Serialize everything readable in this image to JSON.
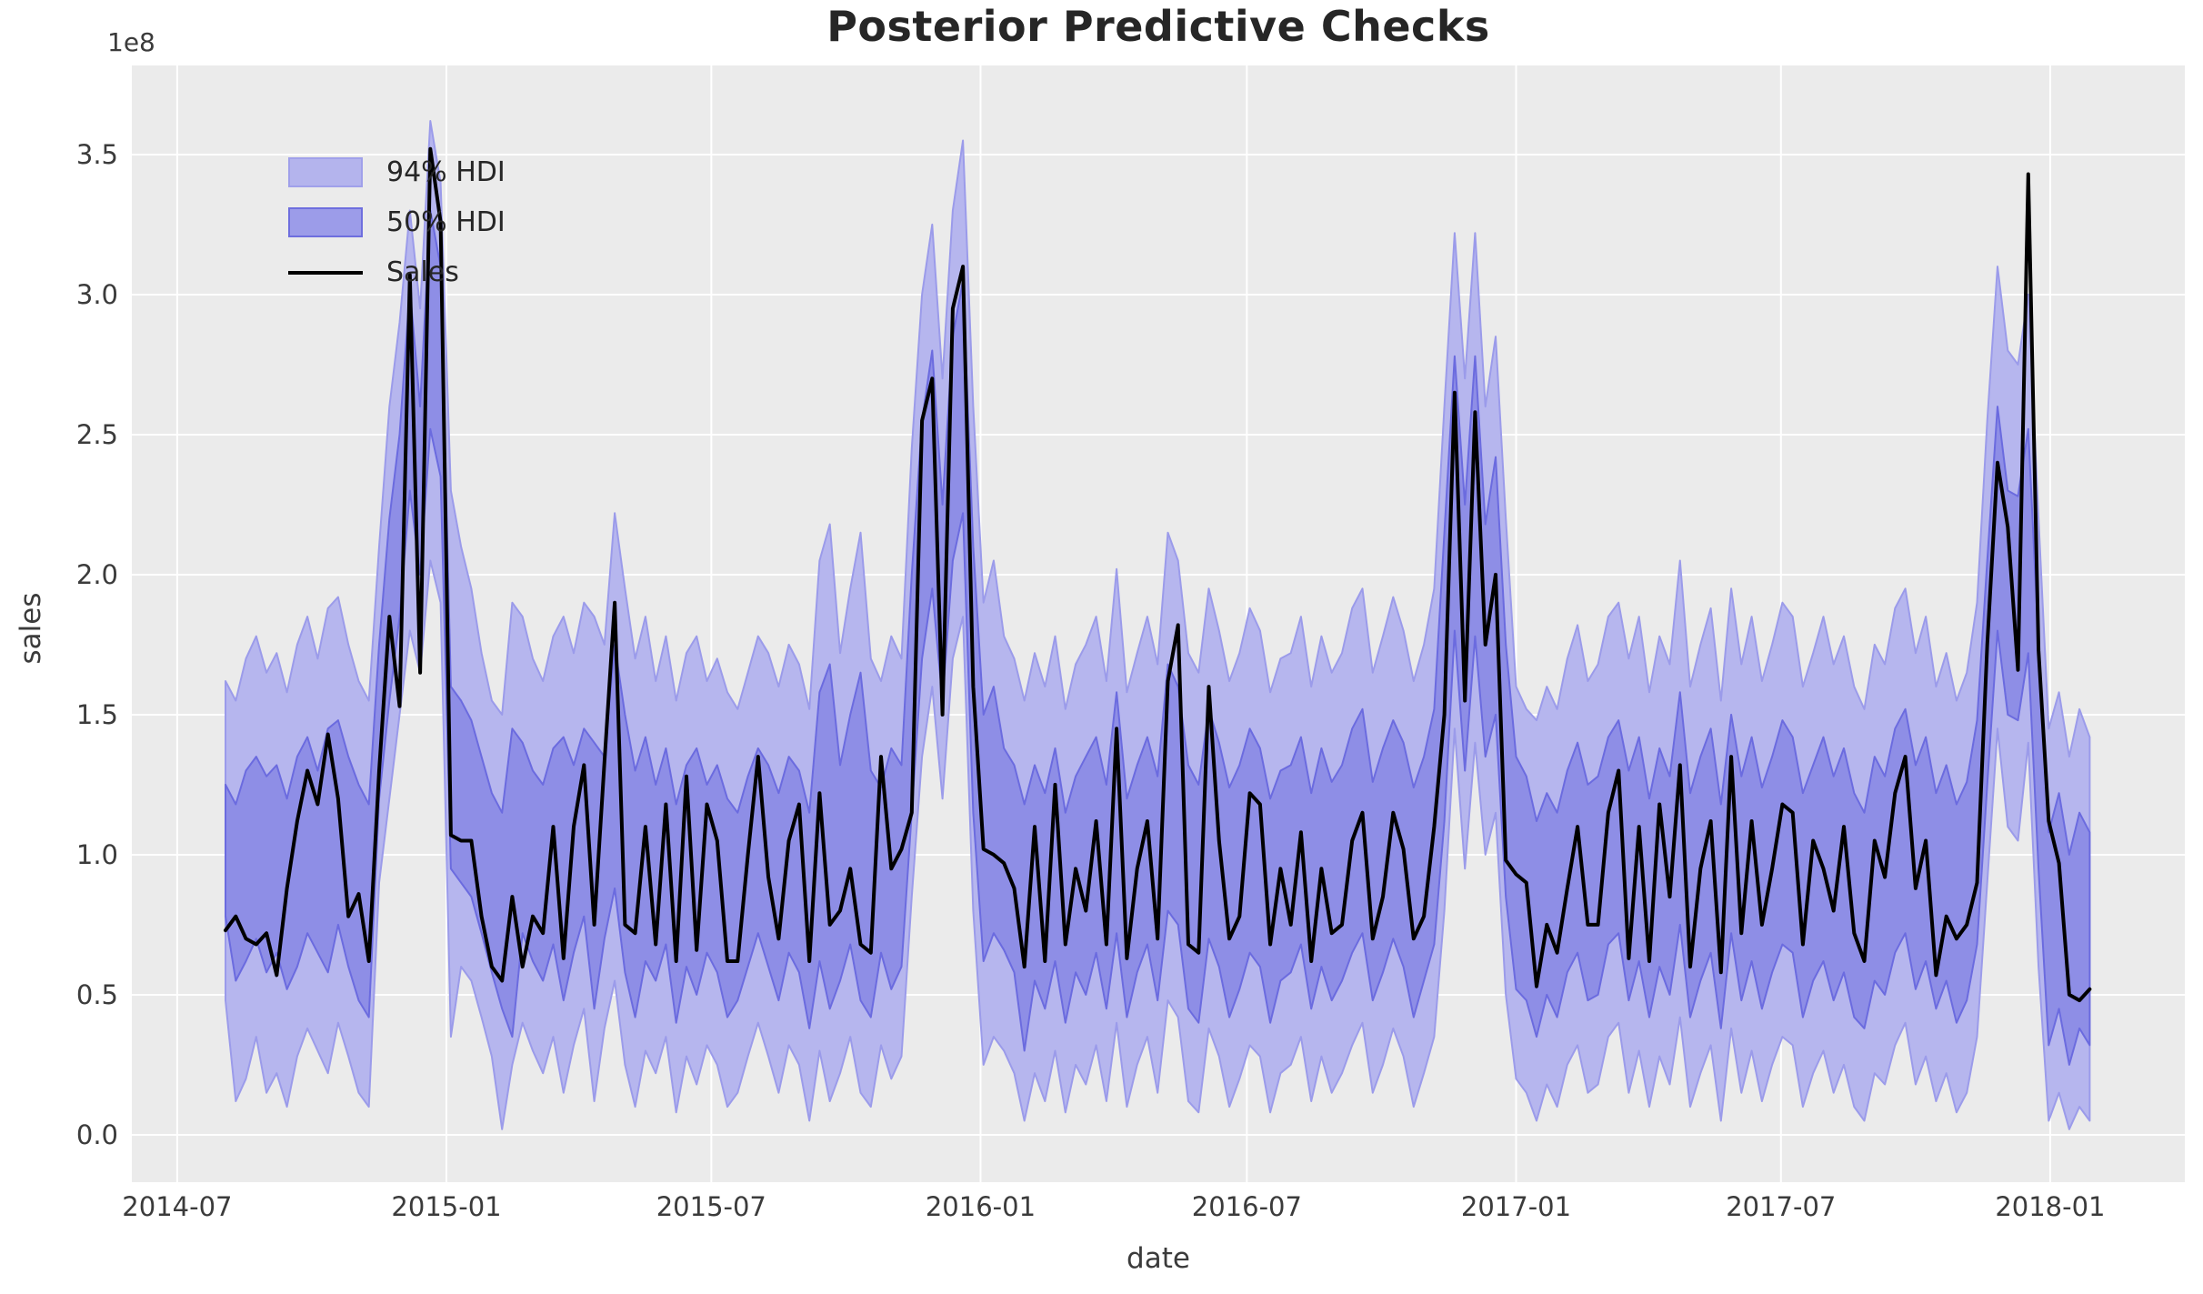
{
  "chart_data": {
    "type": "line",
    "title": "Posterior Predictive Checks",
    "xlabel": "date",
    "ylabel": "sales",
    "y_scale_factor": "1e8",
    "x_start_date": "2014-08-03",
    "x_step_days": 7,
    "n_points": 183,
    "x_tick_labels": [
      "2014-07",
      "2015-01",
      "2015-07",
      "2016-01",
      "2016-07",
      "2017-01",
      "2017-07",
      "2018-01"
    ],
    "x_tick_day_offsets": [
      0,
      184,
      365,
      549,
      731,
      915,
      1096,
      1280
    ],
    "x_axis_range_days": [
      -31,
      1372
    ],
    "y_ticks": [
      0.0,
      0.5,
      1.0,
      1.5,
      2.0,
      2.5,
      3.0,
      3.5
    ],
    "ylim": [
      -0.169,
      3.818
    ],
    "grid": true,
    "legend_position": "upper-left",
    "legend": [
      "94% HDI",
      "50% HDI",
      "Sales"
    ],
    "series": [
      {
        "name": "94% HDI",
        "type": "band",
        "upper": [
          1.62,
          1.55,
          1.7,
          1.78,
          1.65,
          1.72,
          1.58,
          1.75,
          1.85,
          1.7,
          1.88,
          1.92,
          1.75,
          1.62,
          1.55,
          2.1,
          2.6,
          2.9,
          3.3,
          2.95,
          3.62,
          3.4,
          2.3,
          2.1,
          1.95,
          1.72,
          1.55,
          1.5,
          1.9,
          1.85,
          1.7,
          1.62,
          1.78,
          1.85,
          1.72,
          1.9,
          1.85,
          1.75,
          2.22,
          1.95,
          1.7,
          1.85,
          1.62,
          1.78,
          1.55,
          1.72,
          1.78,
          1.62,
          1.7,
          1.58,
          1.52,
          1.65,
          1.78,
          1.72,
          1.6,
          1.75,
          1.68,
          1.52,
          2.05,
          2.18,
          1.72,
          1.95,
          2.15,
          1.7,
          1.62,
          1.78,
          1.7,
          2.45,
          3.0,
          3.25,
          2.7,
          3.3,
          3.55,
          2.6,
          1.9,
          2.05,
          1.78,
          1.7,
          1.55,
          1.72,
          1.6,
          1.78,
          1.52,
          1.68,
          1.75,
          1.85,
          1.62,
          2.02,
          1.58,
          1.72,
          1.85,
          1.68,
          2.15,
          2.05,
          1.72,
          1.65,
          1.95,
          1.8,
          1.62,
          1.72,
          1.88,
          1.8,
          1.58,
          1.7,
          1.72,
          1.85,
          1.6,
          1.78,
          1.65,
          1.72,
          1.88,
          1.95,
          1.65,
          1.78,
          1.92,
          1.8,
          1.62,
          1.75,
          1.95,
          2.6,
          3.22,
          2.7,
          3.22,
          2.6,
          2.85,
          2.2,
          1.6,
          1.52,
          1.48,
          1.6,
          1.52,
          1.7,
          1.82,
          1.62,
          1.68,
          1.85,
          1.9,
          1.7,
          1.85,
          1.58,
          1.78,
          1.68,
          2.05,
          1.6,
          1.75,
          1.88,
          1.55,
          1.95,
          1.68,
          1.85,
          1.62,
          1.75,
          1.9,
          1.85,
          1.6,
          1.72,
          1.85,
          1.68,
          1.78,
          1.6,
          1.52,
          1.75,
          1.68,
          1.88,
          1.95,
          1.72,
          1.85,
          1.6,
          1.72,
          1.55,
          1.65,
          1.9,
          2.55,
          3.1,
          2.8,
          2.75,
          3.0,
          2.2,
          1.45,
          1.58,
          1.35,
          1.52,
          1.42
        ],
        "lower": [
          0.48,
          0.12,
          0.2,
          0.35,
          0.15,
          0.22,
          0.1,
          0.28,
          0.38,
          0.3,
          0.22,
          0.4,
          0.28,
          0.15,
          0.1,
          0.9,
          1.2,
          1.5,
          1.8,
          1.65,
          2.05,
          1.9,
          0.35,
          0.6,
          0.55,
          0.42,
          0.28,
          0.02,
          0.25,
          0.4,
          0.3,
          0.22,
          0.35,
          0.15,
          0.32,
          0.45,
          0.12,
          0.38,
          0.55,
          0.25,
          0.1,
          0.3,
          0.22,
          0.35,
          0.08,
          0.28,
          0.18,
          0.32,
          0.25,
          0.1,
          0.15,
          0.28,
          0.4,
          0.28,
          0.15,
          0.32,
          0.25,
          0.05,
          0.3,
          0.12,
          0.22,
          0.35,
          0.15,
          0.1,
          0.32,
          0.2,
          0.28,
          0.85,
          1.35,
          1.6,
          1.2,
          1.7,
          1.85,
          0.8,
          0.25,
          0.35,
          0.3,
          0.22,
          0.05,
          0.22,
          0.12,
          0.3,
          0.08,
          0.25,
          0.18,
          0.32,
          0.12,
          0.4,
          0.1,
          0.25,
          0.35,
          0.15,
          0.48,
          0.42,
          0.12,
          0.08,
          0.38,
          0.28,
          0.1,
          0.2,
          0.32,
          0.28,
          0.08,
          0.22,
          0.25,
          0.35,
          0.12,
          0.28,
          0.15,
          0.22,
          0.32,
          0.4,
          0.15,
          0.25,
          0.38,
          0.28,
          0.1,
          0.22,
          0.35,
          0.8,
          1.45,
          0.95,
          1.4,
          1.0,
          1.15,
          0.5,
          0.2,
          0.15,
          0.05,
          0.18,
          0.1,
          0.25,
          0.32,
          0.15,
          0.18,
          0.35,
          0.4,
          0.15,
          0.3,
          0.1,
          0.28,
          0.18,
          0.42,
          0.1,
          0.22,
          0.32,
          0.05,
          0.38,
          0.15,
          0.3,
          0.12,
          0.25,
          0.35,
          0.32,
          0.1,
          0.22,
          0.3,
          0.15,
          0.25,
          0.1,
          0.05,
          0.22,
          0.18,
          0.32,
          0.4,
          0.18,
          0.28,
          0.12,
          0.22,
          0.08,
          0.15,
          0.35,
          0.9,
          1.45,
          1.1,
          1.05,
          1.4,
          0.6,
          0.05,
          0.15,
          0.02,
          0.1,
          0.05
        ]
      },
      {
        "name": "50% HDI",
        "type": "band",
        "upper": [
          1.25,
          1.18,
          1.3,
          1.35,
          1.28,
          1.32,
          1.2,
          1.35,
          1.42,
          1.3,
          1.45,
          1.48,
          1.35,
          1.25,
          1.18,
          1.75,
          2.2,
          2.5,
          3.02,
          2.6,
          3.3,
          3.1,
          1.6,
          1.55,
          1.48,
          1.35,
          1.22,
          1.15,
          1.45,
          1.4,
          1.3,
          1.25,
          1.38,
          1.42,
          1.32,
          1.45,
          1.4,
          1.35,
          1.75,
          1.5,
          1.3,
          1.42,
          1.25,
          1.38,
          1.18,
          1.32,
          1.38,
          1.25,
          1.32,
          1.2,
          1.15,
          1.28,
          1.38,
          1.32,
          1.22,
          1.35,
          1.3,
          1.15,
          1.58,
          1.68,
          1.32,
          1.5,
          1.65,
          1.3,
          1.24,
          1.38,
          1.32,
          2.0,
          2.55,
          2.8,
          2.25,
          2.85,
          3.05,
          2.1,
          1.5,
          1.6,
          1.38,
          1.32,
          1.18,
          1.32,
          1.22,
          1.38,
          1.15,
          1.28,
          1.35,
          1.42,
          1.25,
          1.58,
          1.2,
          1.32,
          1.42,
          1.28,
          1.68,
          1.6,
          1.32,
          1.25,
          1.52,
          1.4,
          1.24,
          1.32,
          1.45,
          1.38,
          1.2,
          1.3,
          1.32,
          1.42,
          1.22,
          1.38,
          1.26,
          1.32,
          1.45,
          1.52,
          1.26,
          1.38,
          1.48,
          1.4,
          1.24,
          1.35,
          1.52,
          2.15,
          2.78,
          2.25,
          2.78,
          2.18,
          2.42,
          1.75,
          1.35,
          1.28,
          1.12,
          1.22,
          1.15,
          1.3,
          1.4,
          1.25,
          1.28,
          1.42,
          1.48,
          1.3,
          1.42,
          1.2,
          1.38,
          1.28,
          1.58,
          1.22,
          1.35,
          1.45,
          1.18,
          1.5,
          1.28,
          1.42,
          1.24,
          1.35,
          1.48,
          1.42,
          1.22,
          1.32,
          1.42,
          1.28,
          1.38,
          1.22,
          1.15,
          1.35,
          1.28,
          1.45,
          1.52,
          1.32,
          1.42,
          1.22,
          1.32,
          1.18,
          1.26,
          1.48,
          2.05,
          2.6,
          2.3,
          2.28,
          2.52,
          1.75,
          1.08,
          1.22,
          1.0,
          1.15,
          1.08
        ],
        "lower": [
          0.78,
          0.55,
          0.62,
          0.7,
          0.58,
          0.65,
          0.52,
          0.6,
          0.72,
          0.65,
          0.58,
          0.75,
          0.6,
          0.48,
          0.42,
          1.2,
          1.55,
          1.85,
          2.3,
          2.0,
          2.52,
          2.35,
          0.95,
          0.9,
          0.85,
          0.72,
          0.58,
          0.45,
          0.35,
          0.72,
          0.62,
          0.55,
          0.68,
          0.48,
          0.65,
          0.78,
          0.45,
          0.7,
          0.88,
          0.58,
          0.42,
          0.62,
          0.55,
          0.68,
          0.4,
          0.6,
          0.5,
          0.65,
          0.58,
          0.42,
          0.48,
          0.6,
          0.72,
          0.6,
          0.48,
          0.65,
          0.58,
          0.38,
          0.62,
          0.45,
          0.55,
          0.68,
          0.48,
          0.42,
          0.65,
          0.52,
          0.6,
          1.15,
          1.7,
          1.95,
          1.55,
          2.05,
          2.22,
          1.15,
          0.62,
          0.72,
          0.66,
          0.58,
          0.3,
          0.55,
          0.45,
          0.62,
          0.4,
          0.58,
          0.5,
          0.65,
          0.45,
          0.72,
          0.42,
          0.58,
          0.68,
          0.48,
          0.8,
          0.75,
          0.45,
          0.4,
          0.7,
          0.6,
          0.42,
          0.52,
          0.65,
          0.6,
          0.4,
          0.55,
          0.58,
          0.68,
          0.45,
          0.6,
          0.48,
          0.55,
          0.65,
          0.72,
          0.48,
          0.58,
          0.7,
          0.6,
          0.42,
          0.55,
          0.68,
          1.12,
          1.8,
          1.3,
          1.78,
          1.35,
          1.5,
          0.85,
          0.52,
          0.48,
          0.35,
          0.5,
          0.42,
          0.58,
          0.65,
          0.48,
          0.5,
          0.68,
          0.72,
          0.48,
          0.62,
          0.42,
          0.6,
          0.5,
          0.75,
          0.42,
          0.55,
          0.65,
          0.38,
          0.72,
          0.48,
          0.62,
          0.45,
          0.58,
          0.68,
          0.65,
          0.42,
          0.55,
          0.62,
          0.48,
          0.58,
          0.42,
          0.38,
          0.55,
          0.5,
          0.65,
          0.72,
          0.52,
          0.62,
          0.45,
          0.55,
          0.4,
          0.48,
          0.68,
          1.25,
          1.8,
          1.5,
          1.48,
          1.72,
          0.95,
          0.32,
          0.45,
          0.25,
          0.38,
          0.32
        ]
      },
      {
        "name": "Sales",
        "type": "line",
        "values": [
          0.73,
          0.78,
          0.7,
          0.68,
          0.72,
          0.57,
          0.88,
          1.12,
          1.3,
          1.18,
          1.43,
          1.2,
          0.78,
          0.86,
          0.62,
          1.3,
          1.85,
          1.53,
          3.07,
          1.65,
          3.52,
          3.26,
          1.07,
          1.05,
          1.05,
          0.78,
          0.6,
          0.55,
          0.85,
          0.6,
          0.78,
          0.72,
          1.1,
          0.63,
          1.1,
          1.32,
          0.75,
          1.33,
          1.9,
          0.75,
          0.72,
          1.1,
          0.68,
          1.18,
          0.62,
          1.28,
          0.66,
          1.18,
          1.05,
          0.62,
          0.62,
          1.0,
          1.35,
          0.92,
          0.7,
          1.05,
          1.18,
          0.62,
          1.22,
          0.75,
          0.8,
          0.95,
          0.68,
          0.65,
          1.35,
          0.95,
          1.02,
          1.15,
          2.55,
          2.7,
          1.5,
          2.95,
          3.1,
          1.6,
          1.02,
          1.0,
          0.97,
          0.88,
          0.6,
          1.1,
          0.62,
          1.25,
          0.68,
          0.95,
          0.8,
          1.12,
          0.68,
          1.45,
          0.63,
          0.95,
          1.12,
          0.7,
          1.62,
          1.82,
          0.68,
          0.65,
          1.6,
          1.05,
          0.7,
          0.78,
          1.22,
          1.18,
          0.68,
          0.95,
          0.75,
          1.08,
          0.62,
          0.95,
          0.72,
          0.75,
          1.05,
          1.15,
          0.7,
          0.85,
          1.15,
          1.02,
          0.7,
          0.78,
          1.1,
          1.5,
          2.65,
          1.55,
          2.58,
          1.75,
          2.0,
          0.98,
          0.93,
          0.9,
          0.53,
          0.75,
          0.65,
          0.88,
          1.1,
          0.75,
          0.75,
          1.15,
          1.3,
          0.63,
          1.1,
          0.62,
          1.18,
          0.85,
          1.32,
          0.6,
          0.95,
          1.12,
          0.58,
          1.35,
          0.72,
          1.12,
          0.75,
          0.95,
          1.18,
          1.15,
          0.68,
          1.05,
          0.95,
          0.8,
          1.1,
          0.72,
          0.62,
          1.05,
          0.92,
          1.22,
          1.35,
          0.88,
          1.05,
          0.57,
          0.78,
          0.7,
          0.75,
          0.9,
          1.75,
          2.4,
          2.17,
          1.66,
          3.43,
          1.73,
          1.12,
          0.97,
          0.5,
          0.48,
          0.52
        ]
      }
    ]
  },
  "colors": {
    "figure_bg": "#ffffff",
    "plot_bg": "#ebebeb",
    "grid": "#ffffff",
    "hdi94_fill": "#b6b6ee",
    "hdi94_edge": "#9b9bea",
    "hdi50_fill": "#8e8ee6",
    "hdi50_edge": "#6b6bdf",
    "sales_line": "#000000",
    "tick_text": "#3b3b3b",
    "title_text": "#262626",
    "legend_swatch94_fill": "#b4b4ed",
    "legend_swatch94_edge": "#a0a0ea",
    "legend_swatch50_fill": "#9c9ce9",
    "legend_swatch50_edge": "#6e6ede"
  }
}
